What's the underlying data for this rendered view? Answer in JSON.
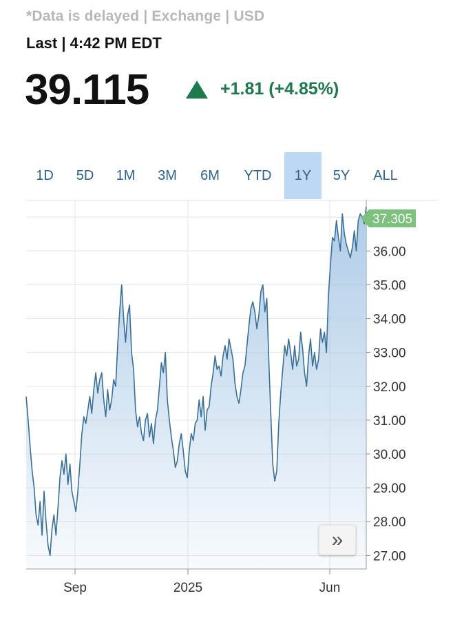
{
  "header": {
    "disclaimer": "*Data is delayed | Exchange | USD",
    "timestamp": "Last | 4:42 PM EDT",
    "price": "39.115",
    "change": "+1.81 (+4.85%)",
    "change_color": "#1d7a4c"
  },
  "range_tabs": [
    {
      "label": "1D"
    },
    {
      "label": "5D"
    },
    {
      "label": "1M"
    },
    {
      "label": "3M"
    },
    {
      "label": "6M"
    },
    {
      "label": "YTD"
    },
    {
      "label": "1Y",
      "active": true
    },
    {
      "label": "5Y"
    },
    {
      "label": "ALL"
    }
  ],
  "expand_icon": "double-chevron-right-icon",
  "chart_data": {
    "type": "area",
    "title": "",
    "xlabel": "",
    "ylabel": "",
    "ylim": [
      26.6,
      37.35
    ],
    "grid": true,
    "line_color": "#3a6f98",
    "fill_color": "#aac9e6",
    "x_ticks": [
      "Sep",
      "2025",
      "Jun"
    ],
    "y_ticks": [
      "37.00",
      "36.00",
      "35.00",
      "34.00",
      "33.00",
      "32.00",
      "31.00",
      "30.00",
      "29.00",
      "28.00",
      "27.00"
    ],
    "last_value_label": "37.305",
    "last_value_color": "#7cc27c",
    "series": [
      {
        "values": [
          31.7,
          31.0,
          30.2,
          29.5,
          29.0,
          28.2,
          27.9,
          28.6,
          27.6,
          28.9,
          28.0,
          27.3,
          27.0,
          27.8,
          28.2,
          27.6,
          28.4,
          29.3,
          29.8,
          29.4,
          30.0,
          29.1,
          29.7,
          28.9,
          28.6,
          28.3,
          28.9,
          29.7,
          30.6,
          31.1,
          30.9,
          31.3,
          31.7,
          31.2,
          31.9,
          32.4,
          31.8,
          32.2,
          32.4,
          31.6,
          31.1,
          31.9,
          31.3,
          31.6,
          32.2,
          32.0,
          33.2,
          34.2,
          35.0,
          34.0,
          33.3,
          34.1,
          34.4,
          33.0,
          32.5,
          31.3,
          30.8,
          31.1,
          30.6,
          30.4,
          31.0,
          31.2,
          30.5,
          30.9,
          30.3,
          31.0,
          31.3,
          32.0,
          32.7,
          32.4,
          33.0,
          31.6,
          31.0,
          30.5,
          30.1,
          29.6,
          29.8,
          30.3,
          30.6,
          30.1,
          29.5,
          29.3,
          30.1,
          30.6,
          30.4,
          30.9,
          31.0,
          31.6,
          31.1,
          31.7,
          30.7,
          31.3,
          31.4,
          32.0,
          32.4,
          32.9,
          32.5,
          32.6,
          32.3,
          32.9,
          33.2,
          32.8,
          33.4,
          33.1,
          32.8,
          32.1,
          31.7,
          31.5,
          31.9,
          32.4,
          32.6,
          33.2,
          33.8,
          34.3,
          34.5,
          34.2,
          33.7,
          34.1,
          34.8,
          35.0,
          34.2,
          34.6,
          32.8,
          31.2,
          29.7,
          29.2,
          29.5,
          30.9,
          31.8,
          32.5,
          33.2,
          32.9,
          33.4,
          33.0,
          32.5,
          33.2,
          32.6,
          32.8,
          33.6,
          33.1,
          32.4,
          32.0,
          32.9,
          33.4,
          32.6,
          33.0,
          32.5,
          32.8,
          33.7,
          33.3,
          33.6,
          33.0,
          34.7,
          35.6,
          36.4,
          36.3,
          36.9,
          36.4,
          36.0,
          37.1,
          36.5,
          36.2,
          36.0,
          35.8,
          36.1,
          36.6,
          36.0,
          36.9,
          37.1,
          37.0,
          36.8,
          37.3
        ]
      }
    ]
  }
}
